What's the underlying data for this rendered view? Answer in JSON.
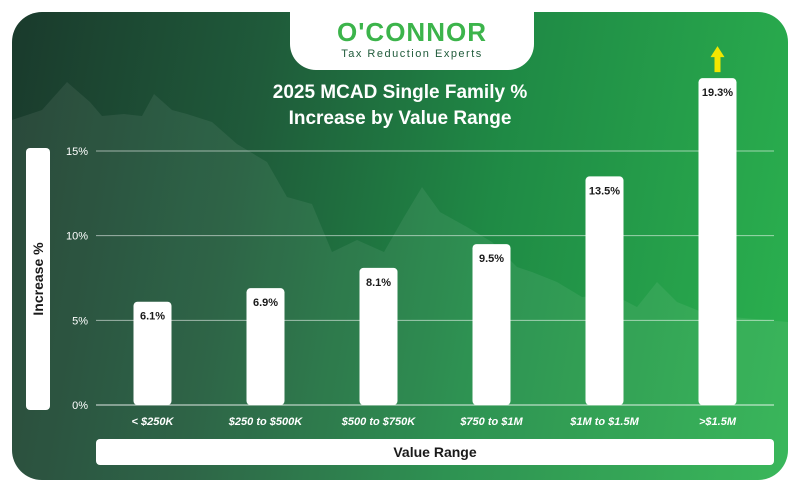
{
  "brand": {
    "name": "O'CONNOR",
    "tagline": "Tax Reduction Experts",
    "accent_color": "#3cb44b"
  },
  "chart_data": {
    "type": "bar",
    "title_line1": "2025 MCAD Single Family %",
    "title_line2": "Increase by Value Range",
    "xlabel": "Value Range",
    "ylabel": "Increase %",
    "categories": [
      "< $250K",
      "$250 to $500K",
      "$500 to $750K",
      "$750 to $1M",
      "$1M to $1.5M",
      ">$1.5M"
    ],
    "values": [
      6.1,
      6.9,
      8.1,
      9.5,
      13.5,
      19.3
    ],
    "value_labels": [
      "6.1%",
      "6.9%",
      "8.1%",
      "9.5%",
      "13.5%",
      "19.3%"
    ],
    "yticks": [
      0,
      5,
      10,
      15
    ],
    "ytick_labels": [
      "0%",
      "5%",
      "10%",
      "15%"
    ],
    "ylim": [
      0,
      15
    ],
    "grid": true,
    "bar_color": "#ffffff",
    "highlight_arrow_category": ">$1.5M",
    "highlight_arrow_color": "#f2e600"
  }
}
